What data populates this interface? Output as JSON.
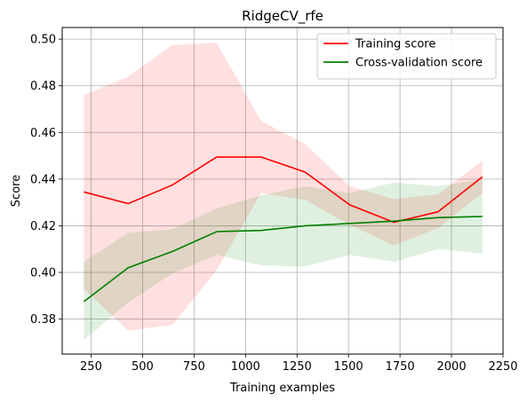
{
  "chart_data": {
    "type": "line",
    "title": "RidgeCV_rfe",
    "xlabel": "Training examples",
    "ylabel": "Score",
    "xlim": [
      110,
      2250
    ],
    "ylim": [
      0.365,
      0.505
    ],
    "xticks": [
      250,
      500,
      750,
      1000,
      1250,
      1500,
      1750,
      2000,
      2250
    ],
    "yticks": [
      0.38,
      0.4,
      0.42,
      0.44,
      0.46,
      0.48,
      0.5
    ],
    "xtick_labels": [
      "250",
      "500",
      "750",
      "1000",
      "1250",
      "1500",
      "1750",
      "2000",
      "2250"
    ],
    "ytick_labels": [
      "0.38",
      "0.40",
      "0.42",
      "0.44",
      "0.46",
      "0.48",
      "0.50"
    ],
    "grid": true,
    "legend_position": "top-right",
    "x": [
      215,
      430,
      645,
      860,
      1075,
      1290,
      1505,
      1720,
      1935,
      2150
    ],
    "series": [
      {
        "name": "Training score",
        "color": "#ff0000",
        "values": [
          0.4345,
          0.4295,
          0.4375,
          0.4495,
          0.4495,
          0.443,
          0.429,
          0.4215,
          0.426,
          0.441
        ],
        "band_lower": [
          0.393,
          0.375,
          0.3775,
          0.401,
          0.434,
          0.431,
          0.4205,
          0.4115,
          0.419,
          0.434
        ],
        "band_upper": [
          0.476,
          0.484,
          0.4975,
          0.4985,
          0.465,
          0.455,
          0.437,
          0.4315,
          0.4335,
          0.448
        ]
      },
      {
        "name": "Cross-validation score",
        "color": "#008000",
        "values": [
          0.3875,
          0.402,
          0.409,
          0.4175,
          0.418,
          0.42,
          0.421,
          0.422,
          0.4235,
          0.424
        ],
        "band_lower": [
          0.371,
          0.387,
          0.3995,
          0.4075,
          0.403,
          0.4025,
          0.4075,
          0.4045,
          0.41,
          0.408
        ],
        "band_upper": [
          0.4045,
          0.417,
          0.4185,
          0.4275,
          0.433,
          0.437,
          0.434,
          0.4385,
          0.437,
          0.44
        ]
      }
    ]
  }
}
